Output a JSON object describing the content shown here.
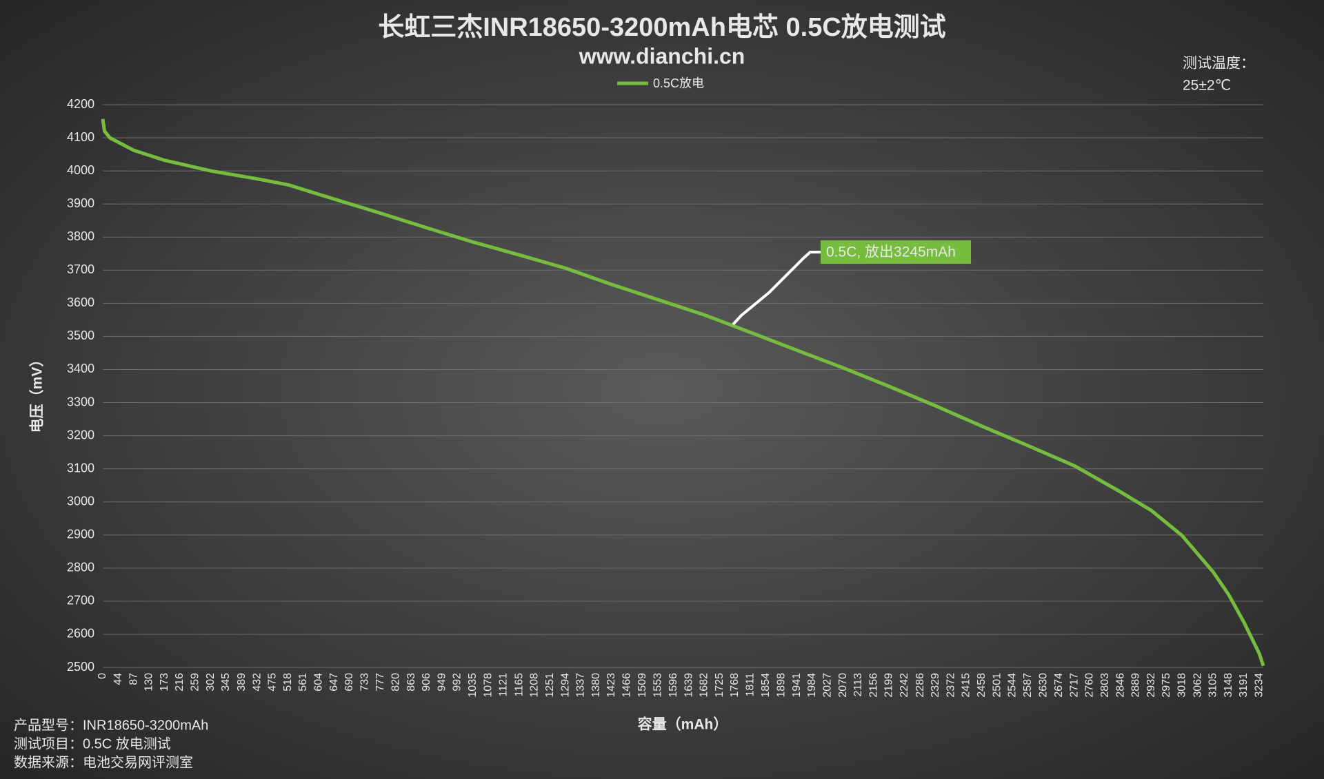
{
  "chart_data": {
    "type": "line",
    "title": "长虹三杰INR18650-3200mAh电芯 0.5C放电测试",
    "subtitle": "www.dianchi.cn",
    "x_label": "容量（mAh）",
    "y_label": "电压（mV）",
    "annotation": "0.5C, 放出3245mAh",
    "temperature_label": "测试温度：",
    "temperature": "25±2℃",
    "notes": [
      "产品型号：INR18650-3200mAh",
      "测试项目：0.5C 放电测试",
      "数据来源：电池交易网评测室"
    ],
    "grid": true,
    "legend": "top",
    "xlim": [
      0,
      3245
    ],
    "xticks": [
      0,
      44,
      87,
      130,
      173,
      216,
      259,
      302,
      345,
      389,
      432,
      475,
      518,
      561,
      604,
      647,
      690,
      733,
      777,
      820,
      863,
      906,
      949,
      992,
      1035,
      1078,
      1121,
      1165,
      1208,
      1251,
      1294,
      1337,
      1380,
      1423,
      1466,
      1509,
      1553,
      1596,
      1639,
      1682,
      1725,
      1768,
      1811,
      1854,
      1898,
      1941,
      1984,
      2027,
      2070,
      2113,
      2156,
      2199,
      2242,
      2286,
      2329,
      2372,
      2415,
      2458,
      2501,
      2544,
      2587,
      2630,
      2674,
      2717,
      2760,
      2803,
      2846,
      2889,
      2932,
      2975,
      3018,
      3062,
      3105,
      3148,
      3191,
      3234
    ],
    "ylim": [
      2500,
      4200
    ],
    "yticks": [
      2500,
      2600,
      2700,
      2800,
      2900,
      3000,
      3100,
      3200,
      3300,
      3400,
      3500,
      3600,
      3700,
      3800,
      3900,
      4000,
      4100,
      4200
    ],
    "x": [
      0,
      5,
      20,
      87,
      173,
      302,
      432,
      518,
      647,
      777,
      906,
      1035,
      1165,
      1294,
      1423,
      1553,
      1682,
      1811,
      1941,
      2070,
      2199,
      2329,
      2458,
      2587,
      2717,
      2846,
      2932,
      3018,
      3105,
      3148,
      3191,
      3234,
      3245
    ],
    "series": [
      {
        "name": "0.5C放电",
        "color": "#76bd3f",
        "values": [
          4157,
          4120,
          4100,
          4062,
          4032,
          4000,
          3976,
          3958,
          3915,
          3872,
          3828,
          3785,
          3746,
          3706,
          3657,
          3611,
          3565,
          3512,
          3458,
          3405,
          3349,
          3290,
          3229,
          3170,
          3109,
          3030,
          2974,
          2898,
          2788,
          2720,
          2636,
          2541,
          2505
        ]
      }
    ]
  }
}
